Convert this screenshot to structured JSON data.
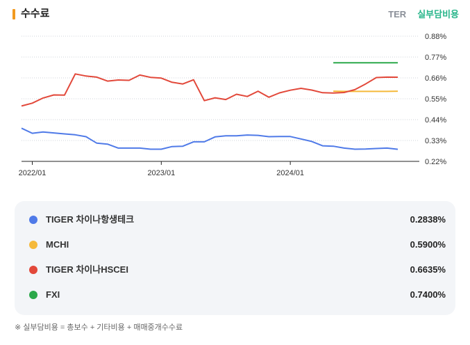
{
  "header": {
    "title": "수수료",
    "tabs": [
      {
        "label": "TER",
        "active": false
      },
      {
        "label": "실부담비용",
        "active": true
      }
    ]
  },
  "chart_data": {
    "type": "line",
    "title": "",
    "xlabel": "",
    "ylabel": "",
    "y_ticks": [
      "0.88%",
      "0.77%",
      "0.66%",
      "0.55%",
      "0.44%",
      "0.33%",
      "0.22%"
    ],
    "ylim": [
      0.22,
      0.88
    ],
    "x_ticks": [
      "2022/01",
      "2023/01",
      "2024/01"
    ],
    "xlim": [
      "2021/12",
      "2025/01"
    ],
    "grid": "horizontal-dotted",
    "series": [
      {
        "name": "TIGER 차이나항생테크",
        "color": "#4f7ae8",
        "x": [
          "2021/12",
          "2022/01",
          "2022/02",
          "2022/03",
          "2022/04",
          "2022/05",
          "2022/06",
          "2022/07",
          "2022/08",
          "2022/09",
          "2022/10",
          "2022/11",
          "2022/12",
          "2023/01",
          "2023/02",
          "2023/03",
          "2023/04",
          "2023/05",
          "2023/06",
          "2023/07",
          "2023/08",
          "2023/09",
          "2023/10",
          "2023/11",
          "2023/12",
          "2024/01",
          "2024/02",
          "2024/03",
          "2024/04",
          "2024/05",
          "2024/06",
          "2024/07",
          "2024/08",
          "2024/09",
          "2024/10",
          "2024/11"
        ],
        "values": [
          0.395,
          0.368,
          0.375,
          0.37,
          0.365,
          0.36,
          0.35,
          0.316,
          0.311,
          0.29,
          0.29,
          0.29,
          0.284,
          0.284,
          0.298,
          0.3,
          0.323,
          0.323,
          0.349,
          0.355,
          0.355,
          0.359,
          0.357,
          0.35,
          0.351,
          0.351,
          0.338,
          0.325,
          0.302,
          0.3,
          0.29,
          0.284,
          0.285,
          0.288,
          0.29,
          0.2838
        ]
      },
      {
        "name": "MCHI",
        "color": "#f5b93a",
        "x": [
          "2024/05",
          "2024/06",
          "2024/07",
          "2024/08",
          "2024/09",
          "2024/10",
          "2024/11"
        ],
        "values": [
          0.59,
          0.589,
          0.589,
          0.589,
          0.589,
          0.589,
          0.59
        ]
      },
      {
        "name": "TIGER 차이나HSCEI",
        "color": "#e2483a",
        "x": [
          "2021/12",
          "2022/01",
          "2022/02",
          "2022/03",
          "2022/04",
          "2022/05",
          "2022/06",
          "2022/07",
          "2022/08",
          "2022/09",
          "2022/10",
          "2022/11",
          "2022/12",
          "2023/01",
          "2023/02",
          "2023/03",
          "2023/04",
          "2023/05",
          "2023/06",
          "2023/07",
          "2023/08",
          "2023/09",
          "2023/10",
          "2023/11",
          "2023/12",
          "2024/01",
          "2024/02",
          "2024/03",
          "2024/04",
          "2024/05",
          "2024/06",
          "2024/07",
          "2024/08",
          "2024/09",
          "2024/10",
          "2024/11"
        ],
        "values": [
          0.512,
          0.527,
          0.554,
          0.57,
          0.569,
          0.681,
          0.67,
          0.664,
          0.643,
          0.649,
          0.647,
          0.675,
          0.663,
          0.659,
          0.637,
          0.628,
          0.65,
          0.54,
          0.555,
          0.546,
          0.574,
          0.562,
          0.59,
          0.558,
          0.581,
          0.595,
          0.605,
          0.596,
          0.582,
          0.58,
          0.583,
          0.598,
          0.628,
          0.662,
          0.664,
          0.6635
        ]
      },
      {
        "name": "FXI",
        "color": "#2ba84a",
        "x": [
          "2024/05",
          "2024/06",
          "2024/07",
          "2024/08",
          "2024/09",
          "2024/10",
          "2024/11"
        ],
        "values": [
          0.74,
          0.74,
          0.74,
          0.74,
          0.74,
          0.74,
          0.74
        ]
      }
    ]
  },
  "legend": [
    {
      "name": "TIGER 차이나항생테크",
      "value": "0.2838%",
      "color": "#4f7ae8"
    },
    {
      "name": "MCHI",
      "value": "0.5900%",
      "color": "#f5b93a"
    },
    {
      "name": "TIGER 차이나HSCEI",
      "value": "0.6635%",
      "color": "#e2483a"
    },
    {
      "name": "FXI",
      "value": "0.7400%",
      "color": "#2ba84a"
    }
  ],
  "footnote": "※ 실부담비용 = 총보수 + 기타비용 + 매매중개수수료"
}
